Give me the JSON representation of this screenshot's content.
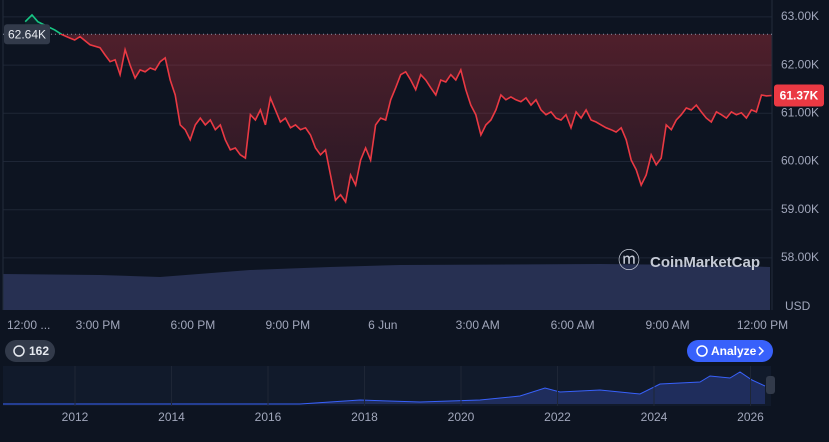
{
  "chart_data": {
    "type": "line",
    "x": [
      42,
      55,
      66,
      79,
      98,
      112,
      127,
      136,
      146,
      165,
      184,
      193.5,
      203,
      212.5,
      222,
      231.5,
      241,
      250.5,
      260,
      269.5,
      279,
      288.5,
      298,
      307.5,
      317,
      326.5,
      336,
      345.5,
      355,
      364.5,
      374,
      383.5,
      393,
      402.5,
      412,
      421.5,
      431,
      440.5,
      450,
      459.5,
      469,
      478.5,
      488,
      497.5,
      507,
      516.5,
      526,
      535.5,
      545,
      554.5,
      564,
      573.5,
      583,
      592.5,
      602,
      611.5,
      621,
      630.5,
      640,
      649.5,
      659,
      668.5,
      678,
      687.5,
      697,
      706.5,
      716,
      725.5,
      735,
      744.5,
      754,
      763.5,
      773,
      782.5,
      792,
      801.5,
      811,
      820.5,
      830,
      839.5,
      849,
      858.5,
      868,
      877.5,
      887,
      896.5,
      906,
      915.5,
      925,
      934.5,
      944,
      953.5,
      963,
      972.5,
      982,
      991.5,
      1001,
      1010.5,
      1020,
      1029.5,
      1039,
      1048.5,
      1058,
      1067.5,
      1077,
      1086.5,
      1096,
      1105.5,
      1115,
      1124.5,
      1134,
      1143.5,
      1153,
      1162.5,
      1172,
      1181.5,
      1191,
      1200.5,
      1210,
      1219.5,
      1229,
      1238.5,
      1248,
      1257.5,
      1267,
      1276.5,
      1286,
      1295.5,
      1305,
      1314.5,
      1324,
      1333.5,
      1343,
      1352.5,
      1362,
      1371.5,
      1381,
      1390.5,
      1400,
      1409.5,
      1419,
      1428.5,
      1438,
      1447.5,
      1457
    ],
    "values": [
      62900,
      63040,
      62900,
      62830,
      62730,
      62630,
      62560,
      62520,
      62590,
      62420,
      62360,
      62210,
      62070,
      62110,
      61800,
      62320,
      62000,
      61730,
      61900,
      61860,
      61940,
      61900,
      62070,
      62150,
      61690,
      61380,
      60760,
      60660,
      60450,
      60760,
      60900,
      60760,
      60860,
      60660,
      60760,
      60450,
      60240,
      60280,
      60140,
      60070,
      60970,
      60860,
      61070,
      60760,
      61320,
      61070,
      60820,
      60900,
      60700,
      60760,
      60660,
      60700,
      60550,
      60280,
      60140,
      60240,
      59720,
      59200,
      59310,
      59160,
      59720,
      59510,
      60030,
      60280,
      60030,
      60760,
      60900,
      60860,
      61280,
      61530,
      61800,
      61860,
      61690,
      61490,
      61800,
      61690,
      61530,
      61380,
      61690,
      61650,
      61800,
      61690,
      61900,
      61490,
      61170,
      60970,
      60550,
      60760,
      60860,
      61070,
      61380,
      61280,
      61340,
      61280,
      61240,
      61320,
      61170,
      61280,
      61070,
      60970,
      61030,
      60900,
      60860,
      60970,
      60700,
      61030,
      60900,
      61070,
      60860,
      60820,
      60760,
      60700,
      60660,
      60610,
      60700,
      60450,
      60030,
      59830,
      59510,
      59720,
      60140,
      59930,
      60070,
      60760,
      60660,
      60860,
      60970,
      61110,
      61070,
      61170,
      61030,
      60900,
      60820,
      61030,
      60970,
      60900,
      61030,
      60970,
      61010,
      60900,
      61070,
      61030,
      61380,
      61360,
      61370
    ],
    "color_up": "#16c784",
    "color_down": "#ea3943",
    "reference": {
      "value": 62640,
      "label": "62.64K"
    },
    "current_label": "61.37K",
    "xlim": [
      0,
      1458
    ],
    "xticks": [
      {
        "value": 0,
        "label": "12:00 ..."
      },
      {
        "value": 180,
        "label": "3:00 PM"
      },
      {
        "value": 360,
        "label": "6:00 PM"
      },
      {
        "value": 540,
        "label": "9:00 PM"
      },
      {
        "value": 720,
        "label": "6 Jun"
      },
      {
        "value": 900,
        "label": "3:00 AM"
      },
      {
        "value": 1080,
        "label": "6:00 AM"
      },
      {
        "value": 1260,
        "label": "9:00 AM"
      },
      {
        "value": 1440,
        "label": "12:00 PM"
      }
    ],
    "ylim": [
      56920,
      63350
    ],
    "yticks": [
      {
        "value": 58000,
        "label": "58.00K"
      },
      {
        "value": 59000,
        "label": "59.00K"
      },
      {
        "value": 60000,
        "label": "60.00K"
      },
      {
        "value": 61000,
        "label": "61.00K"
      },
      {
        "value": 62000,
        "label": "62.00K"
      },
      {
        "value": 63000,
        "label": "63.00K"
      }
    ],
    "y_unit": "USD",
    "grid": true,
    "watermark": "CoinMarketCap",
    "history_count": "162",
    "analyze_button": "Analyze",
    "navigator_ticks": [
      2012,
      2014,
      2016,
      2018,
      2020,
      2022,
      2024,
      2026
    ]
  }
}
